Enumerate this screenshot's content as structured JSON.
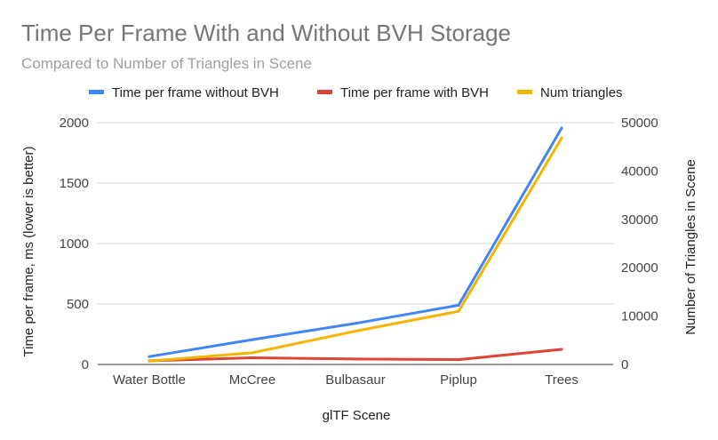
{
  "chart_data": {
    "type": "line",
    "title": "Time Per Frame With and Without BVH Storage",
    "subtitle": "Compared to Number of Triangles in Scene",
    "xlabel": "glTF Scene",
    "ylabel": "Time per frame, ms (lower is better)",
    "y2label": "Number of Triangles in Scene",
    "categories": [
      "Water Bottle",
      "McCree",
      "Bulbasaur",
      "Piplup",
      "Trees"
    ],
    "ylim": [
      0,
      2000
    ],
    "y2lim": [
      0,
      50000
    ],
    "yticks": [
      0,
      500,
      1000,
      1500,
      2000
    ],
    "y2ticks": [
      0,
      10000,
      20000,
      30000,
      40000,
      50000
    ],
    "grid": true,
    "legend_position": "top",
    "series": [
      {
        "name": "Time per frame without BVH",
        "axis": "left",
        "color": "#4285f4",
        "values": [
          65,
          205,
          340,
          490,
          1955
        ]
      },
      {
        "name": "Time per frame with BVH",
        "axis": "left",
        "color": "#db4437",
        "values": [
          30,
          55,
          45,
          40,
          125
        ]
      },
      {
        "name": "Num triangles",
        "axis": "right",
        "color": "#f4b400",
        "values": [
          700,
          2400,
          6900,
          11000,
          46800
        ]
      }
    ]
  }
}
